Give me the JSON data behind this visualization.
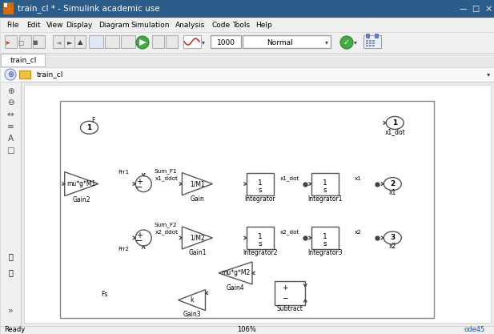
{
  "title": "train_cl * - Simulink academic use",
  "tab_label": "train_cl",
  "breadcrumb": "train_cl",
  "status_left": "Ready",
  "status_center": "106%",
  "status_right": "ode45",
  "menu_items": [
    "File",
    "Edit",
    "View",
    "Display",
    "Diagram",
    "Simulation",
    "Analysis",
    "Code",
    "Tools",
    "Help"
  ],
  "toolbar_text": "1000",
  "bg_color": "#f0f0f0",
  "title_bar_color": "#2b5c8a",
  "line_color": "#404040"
}
